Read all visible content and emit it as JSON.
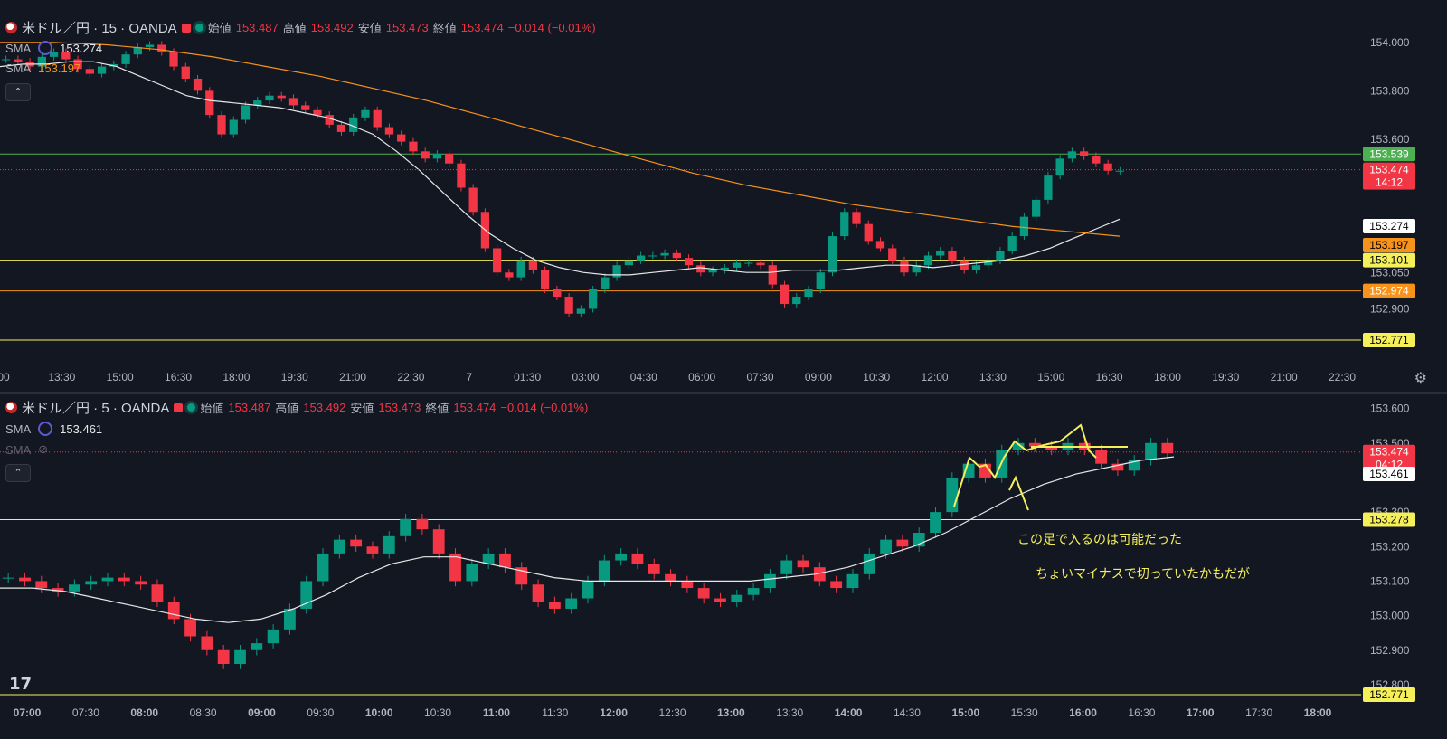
{
  "colors": {
    "up": "#089981",
    "down": "#f23645",
    "sma_white": "#e8e8e8",
    "sma_orange": "#f7931a",
    "yellow": "#f5f05a",
    "green_line": "#4caf50",
    "orange_line": "#f7931a"
  },
  "top": {
    "symbol": "米ドル／円 · 15 · OANDA",
    "open_label": "始値",
    "open": "153.487",
    "high_label": "高値",
    "high": "153.492",
    "low_label": "安値",
    "low": "153.473",
    "close_label": "終値",
    "close": "153.474",
    "change": "−0.014 (−0.01%)",
    "sma1_label": "SMA",
    "sma1_value": "153.274",
    "sma2_label": "SMA",
    "sma2_value": "153.197",
    "collapse": "⌃"
  },
  "bottom": {
    "symbol": "米ドル／円 · 5 · OANDA",
    "open_label": "始値",
    "open": "153.487",
    "high_label": "高値",
    "high": "153.492",
    "low_label": "安値",
    "low": "153.473",
    "close_label": "終値",
    "close": "153.474",
    "change": "−0.014 (−0.01%)",
    "sma1_label": "SMA",
    "sma1_value": "153.461",
    "sma2_label": "SMA",
    "collapse": "⌃",
    "annotation1": "この足で入るのは可能だった",
    "annotation2": "ちょいマイナスで切っていたかもだが"
  },
  "chart_data": [
    {
      "type": "line",
      "title": "米ドル／円 · 15 · OANDA",
      "ylim": [
        152.7,
        154.1
      ],
      "y_ticks": [
        "154.000",
        "153.800",
        "153.600",
        "153.050",
        "152.900"
      ],
      "x_ticks": [
        "00",
        "13:30",
        "15:00",
        "16:30",
        "18:00",
        "19:30",
        "21:00",
        "22:30",
        "7",
        "01:30",
        "03:00",
        "04:30",
        "06:00",
        "07:30",
        "09:00",
        "10:30",
        "12:00",
        "13:30",
        "15:00",
        "16:30",
        "18:00",
        "19:30",
        "21:00",
        "22:30"
      ],
      "hlines": [
        {
          "value": 153.539,
          "color": "green",
          "label": "153.539"
        },
        {
          "value": 153.101,
          "color": "yellow",
          "label": "153.101"
        },
        {
          "value": 152.974,
          "color": "orange",
          "label": "152.974"
        },
        {
          "value": 152.771,
          "color": "yellow",
          "label": "152.771"
        }
      ],
      "price_labels": [
        {
          "label": "153.474",
          "sub": "14:12",
          "role": "last"
        },
        {
          "label": "153.274",
          "role": "sma1"
        },
        {
          "label": "153.197",
          "role": "sma2"
        }
      ],
      "close_series": [
        153.93,
        153.92,
        153.9,
        153.94,
        153.96,
        153.93,
        153.89,
        153.87,
        153.9,
        153.91,
        153.95,
        153.98,
        153.99,
        153.96,
        153.9,
        153.85,
        153.8,
        153.7,
        153.62,
        153.68,
        153.74,
        153.76,
        153.78,
        153.77,
        153.74,
        153.72,
        153.7,
        153.66,
        153.63,
        153.69,
        153.72,
        153.65,
        153.62,
        153.59,
        153.55,
        153.52,
        153.54,
        153.5,
        153.4,
        153.3,
        153.15,
        153.05,
        153.03,
        153.1,
        153.06,
        152.98,
        152.95,
        152.88,
        152.9,
        152.98,
        153.03,
        153.08,
        153.1,
        153.12,
        153.12,
        153.13,
        153.11,
        153.08,
        153.05,
        153.06,
        153.07,
        153.09,
        153.09,
        153.08,
        153.0,
        152.92,
        152.95,
        152.98,
        153.05,
        153.2,
        153.3,
        153.25,
        153.18,
        153.15,
        153.1,
        153.05,
        153.08,
        153.12,
        153.14,
        153.1,
        153.06,
        153.08,
        153.1,
        153.14,
        153.2,
        153.28,
        153.35,
        153.45,
        153.52,
        153.55,
        153.53,
        153.5,
        153.47,
        153.47
      ],
      "sma_white": [
        153.9,
        153.91,
        153.91,
        153.92,
        153.92,
        153.9,
        153.86,
        153.82,
        153.78,
        153.76,
        153.75,
        153.74,
        153.73,
        153.71,
        153.69,
        153.66,
        153.62,
        153.55,
        153.47,
        153.38,
        153.29,
        153.21,
        153.15,
        153.1,
        153.07,
        153.05,
        153.04,
        153.04,
        153.05,
        153.06,
        153.07,
        153.06,
        153.05,
        153.05,
        153.06,
        153.06,
        153.06,
        153.07,
        153.08,
        153.08,
        153.07,
        153.08,
        153.09,
        153.1,
        153.12,
        153.15,
        153.19,
        153.23,
        153.27
      ],
      "sma_orange": [
        154.0,
        154.0,
        153.99,
        153.97,
        153.94,
        153.9,
        153.86,
        153.81,
        153.76,
        153.7,
        153.64,
        153.58,
        153.52,
        153.46,
        153.41,
        153.37,
        153.33,
        153.3,
        153.27,
        153.24,
        153.22,
        153.2
      ],
      "series": [
        {
          "name": "SMA",
          "values": [
            153.274
          ]
        },
        {
          "name": "SMA",
          "values": [
            153.197
          ]
        }
      ]
    },
    {
      "type": "line",
      "title": "米ドル／円 · 5 · OANDA",
      "ylim": [
        152.75,
        153.62
      ],
      "y_ticks": [
        "153.600",
        "153.500",
        "153.300",
        "153.200",
        "153.100",
        "153.000",
        "152.900",
        "152.800"
      ],
      "x_ticks": [
        "07:00",
        "07:30",
        "08:00",
        "08:30",
        "09:00",
        "09:30",
        "10:00",
        "10:30",
        "11:00",
        "11:30",
        "12:00",
        "12:30",
        "13:00",
        "13:30",
        "14:00",
        "14:30",
        "15:00",
        "15:30",
        "16:00",
        "16:30",
        "17:00",
        "17:30",
        "18:00"
      ],
      "hlines": [
        {
          "value": 153.278,
          "color": "yellow",
          "label": "153.278"
        },
        {
          "value": 152.771,
          "color": "yellow",
          "label": "152.771"
        }
      ],
      "price_labels": [
        {
          "label": "153.474",
          "sub": "04:12",
          "role": "last"
        },
        {
          "label": "153.461",
          "role": "sma1"
        }
      ],
      "close_series": [
        153.11,
        153.1,
        153.08,
        153.07,
        153.09,
        153.1,
        153.11,
        153.1,
        153.09,
        153.04,
        152.99,
        152.94,
        152.9,
        152.86,
        152.9,
        152.92,
        152.96,
        153.02,
        153.1,
        153.18,
        153.22,
        153.2,
        153.18,
        153.23,
        153.28,
        153.25,
        153.18,
        153.1,
        153.15,
        153.18,
        153.14,
        153.09,
        153.04,
        153.02,
        153.05,
        153.1,
        153.16,
        153.18,
        153.15,
        153.12,
        153.1,
        153.08,
        153.05,
        153.04,
        153.06,
        153.08,
        153.12,
        153.16,
        153.14,
        153.1,
        153.08,
        153.12,
        153.18,
        153.22,
        153.2,
        153.24,
        153.3,
        153.4,
        153.44,
        153.4,
        153.48,
        153.5,
        153.49,
        153.48,
        153.5,
        153.48,
        153.44,
        153.42,
        153.45,
        153.5,
        153.47
      ],
      "sma_white": [
        153.08,
        153.08,
        153.07,
        153.05,
        153.03,
        153.01,
        152.99,
        152.98,
        152.99,
        153.02,
        153.06,
        153.11,
        153.15,
        153.17,
        153.17,
        153.15,
        153.13,
        153.11,
        153.1,
        153.1,
        153.1,
        153.1,
        153.1,
        153.1,
        153.11,
        153.12,
        153.14,
        153.17,
        153.2,
        153.24,
        153.29,
        153.34,
        153.38,
        153.41,
        153.43,
        153.45,
        153.46
      ]
    }
  ]
}
